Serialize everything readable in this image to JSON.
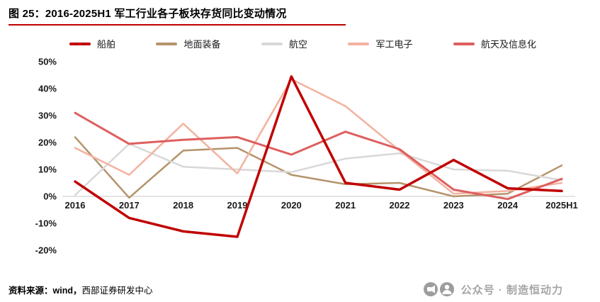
{
  "header": {
    "title": "图 25：2016-2025H1 军工行业各子板块存货同比变动情况",
    "accent_color": "#C00000"
  },
  "chart_data": {
    "type": "line",
    "title": "2016-2025H1 军工行业各子板块存货同比变动情况",
    "categories": [
      "2016",
      "2017",
      "2018",
      "2019",
      "2020",
      "2021",
      "2022",
      "2023",
      "2024",
      "2025H1"
    ],
    "ylim": [
      -20,
      50
    ],
    "ytick_step": 10,
    "ytick_suffix": "%",
    "grid": false,
    "legend_position": "top",
    "series": [
      {
        "name": "船舶",
        "color": "#C00000",
        "width": 3.5,
        "values": [
          5.5,
          -8,
          -13,
          -15,
          44.5,
          5,
          2.5,
          13.5,
          3,
          2
        ]
      },
      {
        "name": "地面装备",
        "color": "#B5936B",
        "width": 2.5,
        "values": [
          22,
          -0.5,
          17,
          18,
          8,
          4.5,
          5,
          0,
          1,
          11.5
        ]
      },
      {
        "name": "航空",
        "color": "#D8D8D8",
        "width": 2.5,
        "values": [
          0.5,
          19.5,
          11,
          10,
          9,
          14,
          16,
          10,
          9.5,
          6
        ]
      },
      {
        "name": "军工电子",
        "color": "#F3B2A0",
        "width": 2.5,
        "values": [
          18,
          8,
          27,
          8.5,
          43.5,
          33.5,
          17,
          1,
          2,
          5
        ]
      },
      {
        "name": "航天及信息化",
        "color": "#DE5F5F",
        "width": 3,
        "values": [
          31,
          19.5,
          21,
          22,
          15.5,
          24,
          17.5,
          2.5,
          -1,
          6.5
        ]
      }
    ]
  },
  "footer": {
    "source_label": "资料来源：wind，",
    "source_text": "西部证券研发中心",
    "watermark": "公众号 · 制造恒动力"
  }
}
